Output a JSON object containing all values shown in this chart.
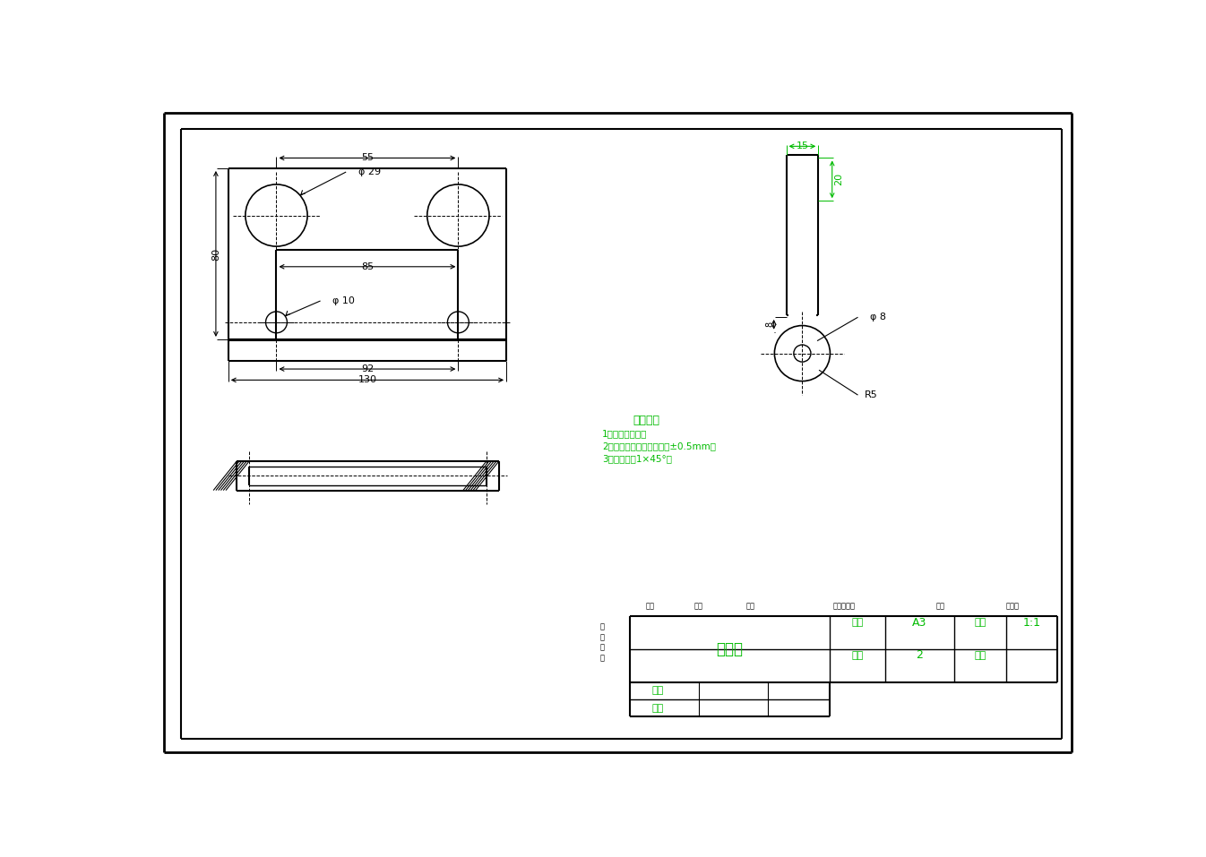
{
  "bg_color": "#ffffff",
  "line_color": "#000000",
  "green_color": "#00bb00",
  "tech_notes_title": "技术要求",
  "tech_notes": [
    "1、锐角倒钝角。",
    "2、未注标注尺寸允许偏差±0.5mm。",
    "3、未注倒角1×45°。"
  ],
  "part_name": "钻模板",
  "material": "A3",
  "scale": "1:1",
  "quantity": "2",
  "label_material": "材料",
  "label_quantity": "数量",
  "label_scale": "比例",
  "label_drawno": "图号",
  "label_drawer": "制图",
  "label_checker": "审核"
}
